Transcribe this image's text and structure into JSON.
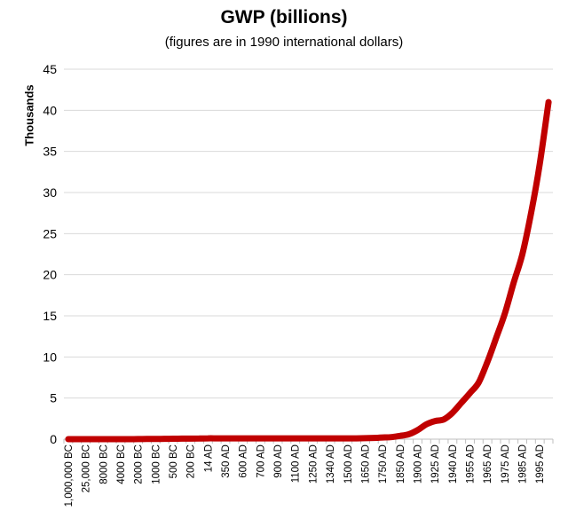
{
  "chart_data": {
    "type": "line",
    "title": "GWP (billions)",
    "subtitle": "(figures are in 1990 international dollars)",
    "ylabel": "Thousands",
    "xlabel": "",
    "ylim": [
      0,
      45
    ],
    "yticks": [
      0,
      5,
      10,
      15,
      20,
      25,
      30,
      35,
      40,
      45
    ],
    "grid": true,
    "legend": "none",
    "line_color": "#c00000",
    "categories": [
      "1,000,000 BC",
      "",
      "25,000 BC",
      "",
      "8000 BC",
      "",
      "4000 BC",
      "",
      "2000 BC",
      "",
      "1000 BC",
      "",
      "500 BC",
      "",
      "200 BC",
      "",
      "14 AD",
      "",
      "350 AD",
      "",
      "600 AD",
      "",
      "700 AD",
      "",
      "900 AD",
      "",
      "1100 AD",
      "",
      "1250 AD",
      "",
      "1340 AD",
      "",
      "1500 AD",
      "",
      "1650 AD",
      "",
      "1750 AD",
      "",
      "1850 AD",
      "",
      "1900 AD",
      "",
      "1925 AD",
      "",
      "1940 AD",
      "",
      "1955 AD",
      "",
      "1965 AD",
      "",
      "1975 AD",
      "",
      "1985 AD",
      "",
      "1995 AD",
      ""
    ],
    "values": [
      0.0,
      0.0,
      0.0,
      0.0,
      0.0,
      0.0,
      0.0,
      0.0,
      0.01,
      0.02,
      0.03,
      0.04,
      0.05,
      0.06,
      0.07,
      0.08,
      0.1,
      0.1,
      0.1,
      0.1,
      0.1,
      0.1,
      0.1,
      0.1,
      0.1,
      0.1,
      0.1,
      0.1,
      0.1,
      0.1,
      0.1,
      0.1,
      0.1,
      0.1,
      0.12,
      0.15,
      0.2,
      0.25,
      0.4,
      0.6,
      1.1,
      1.8,
      2.2,
      2.4,
      3.2,
      4.4,
      5.6,
      6.9,
      9.4,
      12.3,
      15.3,
      19.0,
      22.5,
      27.5,
      33.5,
      41.0
    ]
  }
}
